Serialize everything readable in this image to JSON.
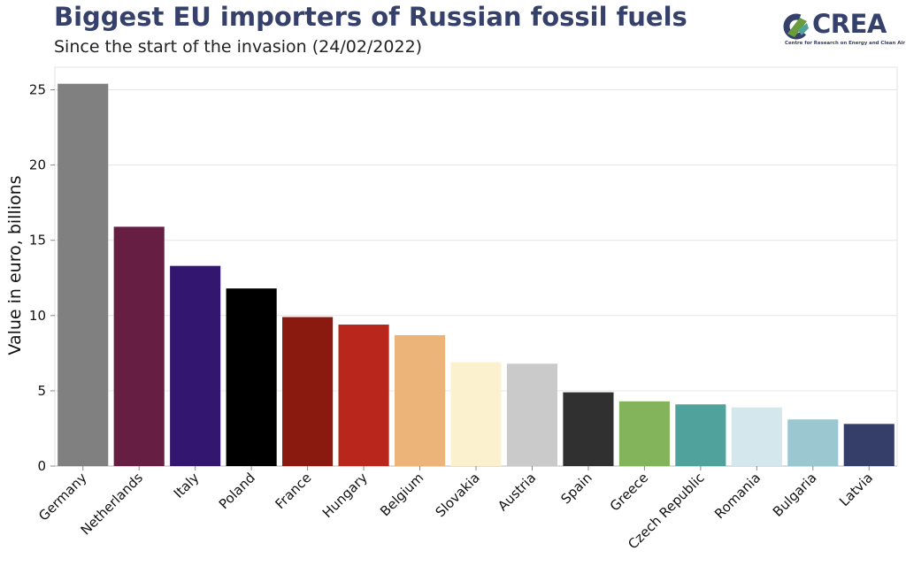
{
  "header": {
    "title": "Biggest EU importers of Russian fossil fuels",
    "subtitle": "Since the start of the invasion (24/02/2022)"
  },
  "logo": {
    "name": "CREA",
    "tagline": "Centre for Research on Energy and Clean Air",
    "colors": [
      "#6a9b3c",
      "#35406b",
      "#4fa39a"
    ]
  },
  "chart_data": {
    "type": "bar",
    "title": "Biggest EU importers of Russian fossil fuels",
    "subtitle": "Since the start of the invasion (24/02/2022)",
    "ylabel": "Value in euro, billions",
    "xlabel": "",
    "ylim": [
      0,
      26.5
    ],
    "yticks": [
      0,
      5,
      10,
      15,
      20,
      25
    ],
    "grid": true,
    "categories": [
      "Germany",
      "Netherlands",
      "Italy",
      "Poland",
      "France",
      "Hungary",
      "Belgium",
      "Slovakia",
      "Austria",
      "Spain",
      "Greece",
      "Czech Republic",
      "Romania",
      "Bulgaria",
      "Latvia"
    ],
    "values": [
      25.4,
      15.9,
      13.3,
      11.8,
      9.9,
      9.4,
      8.7,
      6.9,
      6.8,
      4.9,
      4.3,
      4.1,
      3.9,
      3.1,
      2.8
    ],
    "colors": [
      "#808080",
      "#661e43",
      "#321670",
      "#000000",
      "#8a1910",
      "#b9271c",
      "#ecb478",
      "#fcf1ce",
      "#cacaca",
      "#303030",
      "#83b35a",
      "#50a39c",
      "#d3e7ec",
      "#9bc8d0",
      "#353d69"
    ]
  }
}
